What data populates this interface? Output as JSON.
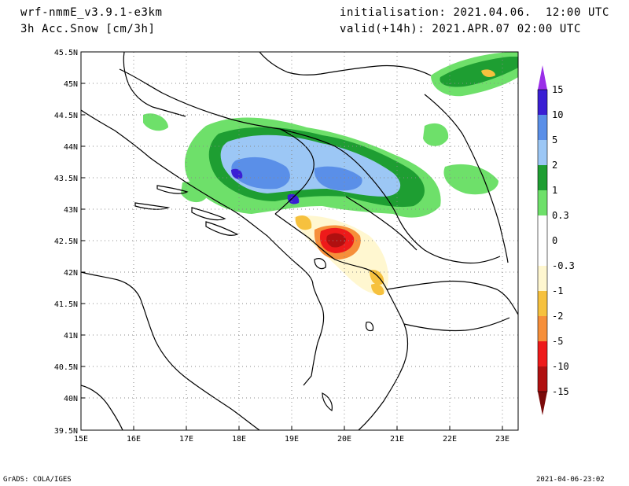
{
  "header": {
    "model": "wrf-nmmE_v3.9.1-e3km",
    "field": "3h Acc.Snow [cm/3h]",
    "init": "initialisation: 2021.04.06.  12:00 UTC",
    "valid": "valid(+14h): 2021.APR.07 02:00 UTC"
  },
  "footer": {
    "credit": "GrADS: COLA/IGES",
    "timestamp": "2021-04-06-23:02"
  },
  "map": {
    "lat_labels": [
      "45.5N",
      "45N",
      "44.5N",
      "44N",
      "43.5N",
      "43N",
      "42.5N",
      "42N",
      "41.5N",
      "41N",
      "40.5N",
      "40N",
      "39.5N"
    ],
    "lon_labels": [
      "15E",
      "16E",
      "17E",
      "18E",
      "19E",
      "20E",
      "21E",
      "22E",
      "23E"
    ],
    "lon_range": [
      15,
      23.3
    ],
    "lat_range": [
      39.5,
      45.5
    ],
    "grid": "dotted"
  },
  "colorbar": {
    "labels": [
      "15",
      "10",
      "5",
      "2",
      "1",
      "0.3",
      "0",
      "-0.3",
      "-1",
      "-2",
      "-5",
      "-10",
      "-15"
    ],
    "colors": [
      "#3a1fd4",
      "#5a8fe8",
      "#9cc7f5",
      "#1e9e32",
      "#6ee06a",
      "#ffffff",
      "#fff7d0",
      "#f6c13e",
      "#f68f3a",
      "#ee1a1a",
      "#b01010"
    ],
    "top_arrow_color": "#9a2ee8",
    "bottom_arrow_color": "#7a0a0a"
  }
}
